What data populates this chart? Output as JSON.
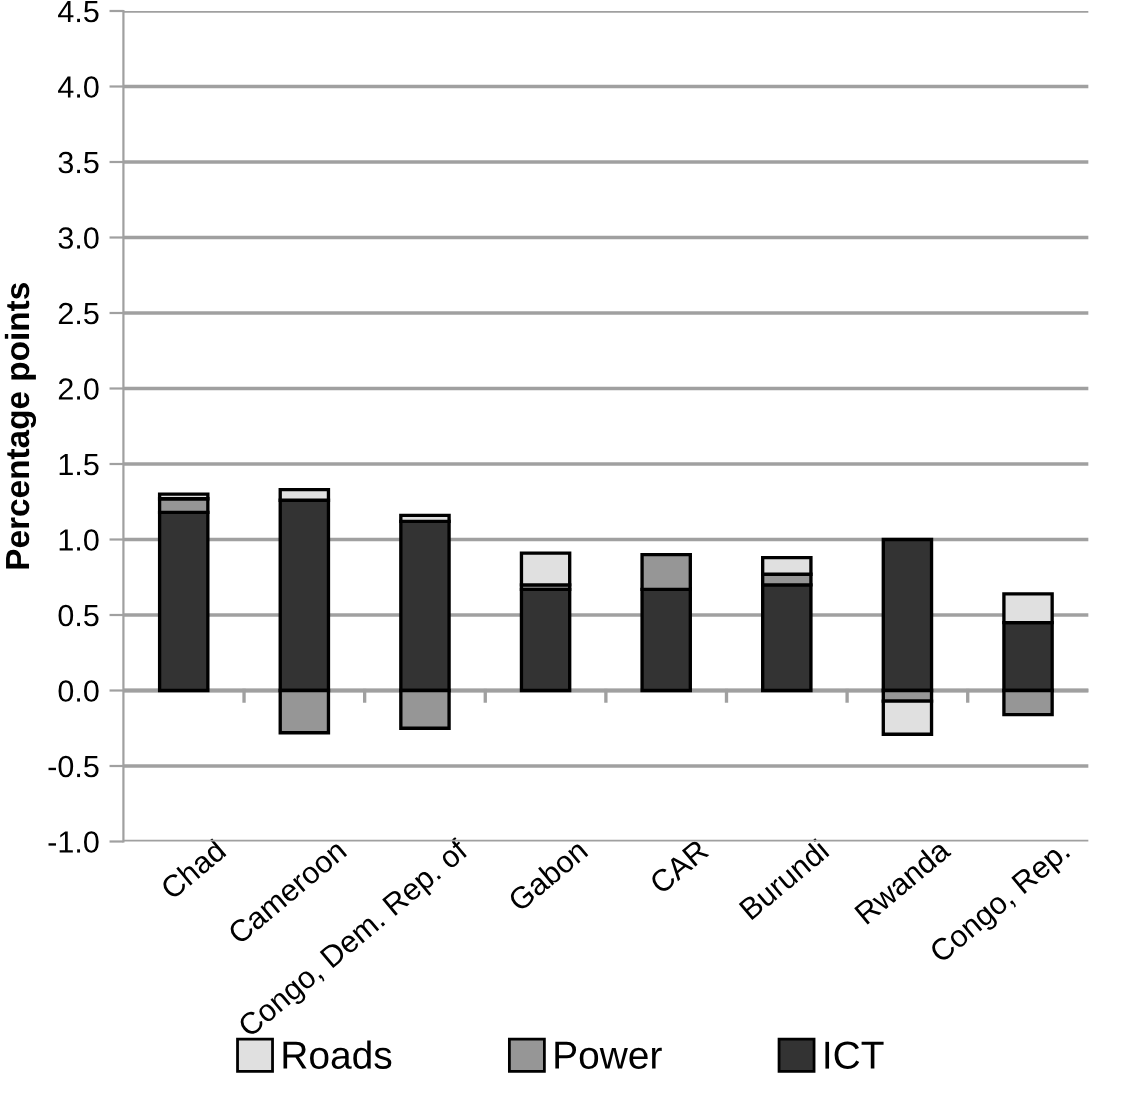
{
  "chart_data": {
    "type": "bar",
    "stacked": true,
    "ylabel": "Percentage points",
    "categories": [
      "Chad",
      "Cameroon",
      "Congo, Dem. Rep. of",
      "Gabon",
      "CAR",
      "Burundi",
      "Rwanda",
      "Congo, Rep."
    ],
    "series": [
      {
        "name": "ICT",
        "color": "#333333",
        "values": [
          1.18,
          1.26,
          1.12,
          0.67,
          0.67,
          0.7,
          1.0,
          0.45
        ]
      },
      {
        "name": "Power",
        "color": "#969696",
        "values": [
          0.09,
          -0.28,
          -0.25,
          0.03,
          0.23,
          0.07,
          -0.07,
          -0.16
        ]
      },
      {
        "name": "Roads",
        "color": "#e0e0e0",
        "values": [
          0.03,
          0.07,
          0.04,
          0.21,
          null,
          0.11,
          -0.22,
          0.19
        ]
      }
    ],
    "ylim": [
      -1.0,
      4.5
    ],
    "yticks": [
      {
        "value": -1.0,
        "label": "-1.0"
      },
      {
        "value": -0.5,
        "label": "-0.5"
      },
      {
        "value": 0,
        "label": "0.0"
      },
      {
        "value": 0.5,
        "label": "0.5"
      },
      {
        "value": 1.0,
        "label": "1.0"
      },
      {
        "value": 1.5,
        "label": "1.5"
      },
      {
        "value": 2.0,
        "label": "2.0"
      },
      {
        "value": 2.5,
        "label": "2.5"
      },
      {
        "value": 3.0,
        "label": "3.0"
      },
      {
        "value": 3.5,
        "label": "3.5"
      },
      {
        "value": 4.0,
        "label": "4.0"
      },
      {
        "value": 4.5,
        "label": "4.5"
      }
    ],
    "grid": "y",
    "legend": "bottom"
  }
}
